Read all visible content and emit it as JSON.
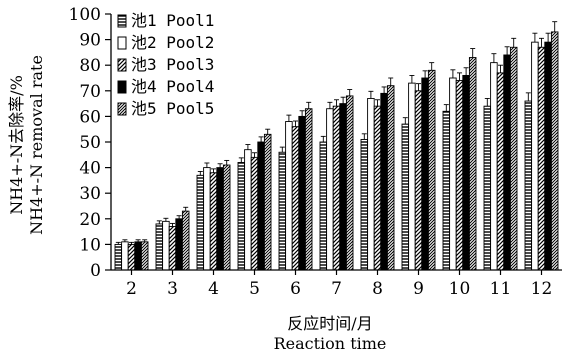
{
  "chart_data": {
    "type": "bar",
    "categories": [
      "2",
      "3",
      "4",
      "5",
      "6",
      "7",
      "8",
      "9",
      "10",
      "11",
      "12"
    ],
    "series": [
      {
        "name": "池1 Pool1",
        "pattern": "hlines",
        "values": [
          10,
          18,
          37,
          42,
          46,
          50,
          51,
          57,
          62,
          64,
          66
        ],
        "errors": [
          0.8,
          1.2,
          1.5,
          1.8,
          2.0,
          2.2,
          2.2,
          2.5,
          2.6,
          3.0,
          3.2
        ]
      },
      {
        "name": "池2 Pool2",
        "pattern": "white",
        "values": [
          11,
          19,
          40,
          47,
          58,
          63,
          67,
          73,
          75,
          81,
          89
        ],
        "errors": [
          0.8,
          1.2,
          1.8,
          2.0,
          2.5,
          2.5,
          2.8,
          3.0,
          3.2,
          3.5,
          3.5
        ]
      },
      {
        "name": "池3 Pool3",
        "pattern": "diag",
        "values": [
          10,
          17,
          38,
          44,
          56,
          64,
          64,
          70,
          74,
          77,
          87
        ],
        "errors": [
          0.8,
          1.2,
          1.5,
          1.8,
          2.2,
          2.5,
          2.5,
          2.8,
          3.0,
          3.0,
          3.5
        ]
      },
      {
        "name": "池4 Pool4",
        "pattern": "solid",
        "values": [
          11,
          20,
          40,
          50,
          60,
          65,
          69,
          75,
          76,
          84,
          89
        ],
        "errors": [
          0.8,
          1.2,
          1.5,
          2.0,
          2.2,
          2.5,
          2.5,
          2.8,
          3.0,
          3.2,
          3.5
        ]
      },
      {
        "name": "池5 Pool5",
        "pattern": "dense",
        "values": [
          11,
          23,
          41,
          53,
          63,
          68,
          72,
          78,
          83,
          87,
          93
        ],
        "errors": [
          0.8,
          1.5,
          1.8,
          2.0,
          2.5,
          2.5,
          3.0,
          3.0,
          3.5,
          3.5,
          4.0
        ]
      }
    ],
    "ylim": [
      0,
      100
    ],
    "yticks": [
      0,
      10,
      20,
      30,
      40,
      50,
      60,
      70,
      80,
      90,
      100
    ],
    "ylabel_line1": "NH4+-N去除率/%",
    "ylabel_line2": "NH4+-N removal rate",
    "xlabel_line1": "反应时间/月",
    "xlabel_line2": "Reaction time",
    "legend_position": "top-left",
    "grid": false
  }
}
